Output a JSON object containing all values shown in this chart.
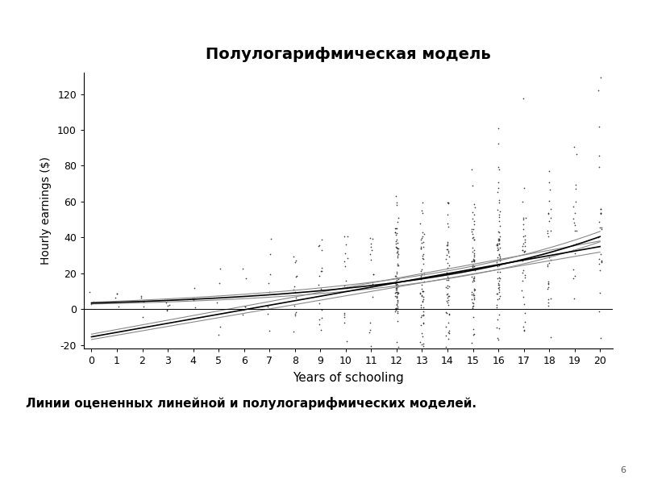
{
  "title": "Полулогарифмическая модель",
  "xlabel": "Years of schooling",
  "ylabel": "Hourly earnings ($)",
  "subtitle": "Линии оцененных линейной и полулогарифмических моделей.",
  "page_number": "6",
  "xlim": [
    -0.3,
    20.5
  ],
  "ylim": [
    -22,
    132
  ],
  "ytick_vals": [
    -20,
    0,
    20,
    40,
    60,
    80,
    100,
    120
  ],
  "ytick_labels": [
    "-20",
    "0",
    "20",
    "40",
    "60",
    "80",
    "100",
    "120"
  ],
  "xticks": [
    0,
    1,
    2,
    3,
    4,
    5,
    6,
    7,
    8,
    9,
    10,
    11,
    12,
    13,
    14,
    15,
    16,
    17,
    18,
    19,
    20
  ],
  "linear_intercept": -15.5,
  "linear_slope": 2.52,
  "log_a": 1.2,
  "log_b": 0.125,
  "background_color": "#ffffff",
  "line_color": "#000000",
  "ci_color": "#888888",
  "dot_color": "#222222",
  "dot_size": 1.5,
  "seed": 99
}
